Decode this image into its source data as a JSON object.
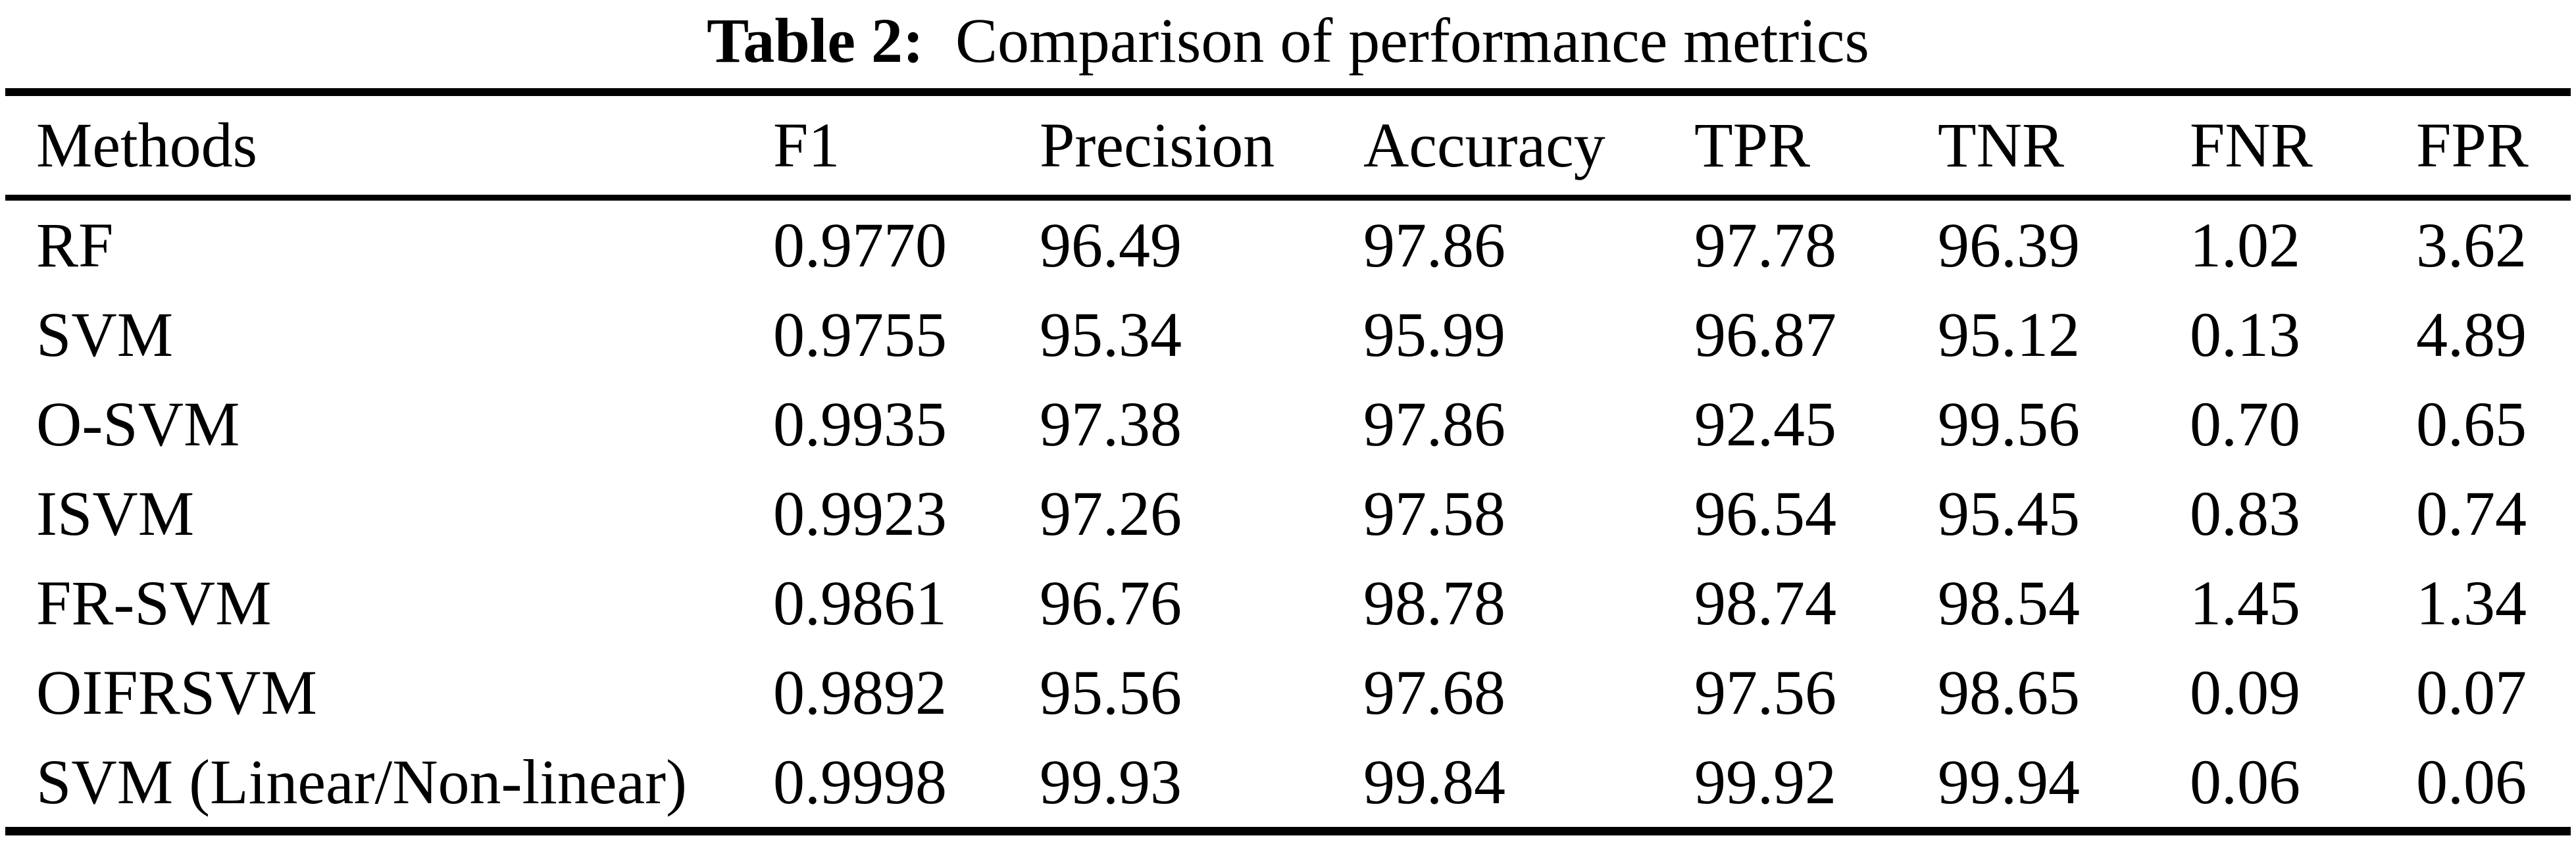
{
  "caption": {
    "label": "Table 2:",
    "text": "Comparison of performance metrics"
  },
  "table": {
    "columns": [
      "Methods",
      "F1",
      "Precision",
      "Accuracy",
      "TPR",
      "TNR",
      "FNR",
      "FPR"
    ],
    "rows": [
      {
        "method": "RF",
        "values": [
          "0.9770",
          "96.49",
          "97.86",
          "97.78",
          "96.39",
          "1.02",
          "3.62"
        ]
      },
      {
        "method": "SVM",
        "values": [
          "0.9755",
          "95.34",
          "95.99",
          "96.87",
          "95.12",
          "0.13",
          "4.89"
        ]
      },
      {
        "method": "O-SVM",
        "values": [
          "0.9935",
          "97.38",
          "97.86",
          "92.45",
          "99.56",
          "0.70",
          "0.65"
        ]
      },
      {
        "method": "ISVM",
        "values": [
          "0.9923",
          "97.26",
          "97.58",
          "96.54",
          "95.45",
          "0.83",
          "0.74"
        ]
      },
      {
        "method": "FR-SVM",
        "values": [
          "0.9861",
          "96.76",
          "98.78",
          "98.74",
          "98.54",
          "1.45",
          "1.34"
        ]
      },
      {
        "method": "OIFRSVM",
        "values": [
          "0.9892",
          "95.56",
          "97.68",
          "97.56",
          "98.65",
          "0.09",
          "0.07"
        ]
      },
      {
        "method": "SVM (Linear/Non-linear)",
        "values": [
          "0.9998",
          "99.93",
          "99.84",
          "99.92",
          "99.94",
          "0.06",
          "0.06"
        ]
      }
    ]
  },
  "chart_data": {
    "type": "table",
    "title": "Table 2: Comparison of performance metrics",
    "columns": [
      "Methods",
      "F1",
      "Precision",
      "Accuracy",
      "TPR",
      "TNR",
      "FNR",
      "FPR"
    ],
    "rows": [
      [
        "RF",
        0.977,
        96.49,
        97.86,
        97.78,
        96.39,
        1.02,
        3.62
      ],
      [
        "SVM",
        0.9755,
        95.34,
        95.99,
        96.87,
        95.12,
        0.13,
        4.89
      ],
      [
        "O-SVM",
        0.9935,
        97.38,
        97.86,
        92.45,
        99.56,
        0.7,
        0.65
      ],
      [
        "ISVM",
        0.9923,
        97.26,
        97.58,
        96.54,
        95.45,
        0.83,
        0.74
      ],
      [
        "FR-SVM",
        0.9861,
        96.76,
        98.78,
        98.74,
        98.54,
        1.45,
        1.34
      ],
      [
        "OIFRSVM",
        0.9892,
        95.56,
        97.68,
        97.56,
        98.65,
        0.09,
        0.07
      ],
      [
        "SVM (Linear/Non-linear)",
        0.9998,
        99.93,
        99.84,
        99.92,
        99.94,
        0.06,
        0.06
      ]
    ]
  },
  "colors": {
    "text": "#000000",
    "background": "#ffffff",
    "rule": "#000000"
  }
}
